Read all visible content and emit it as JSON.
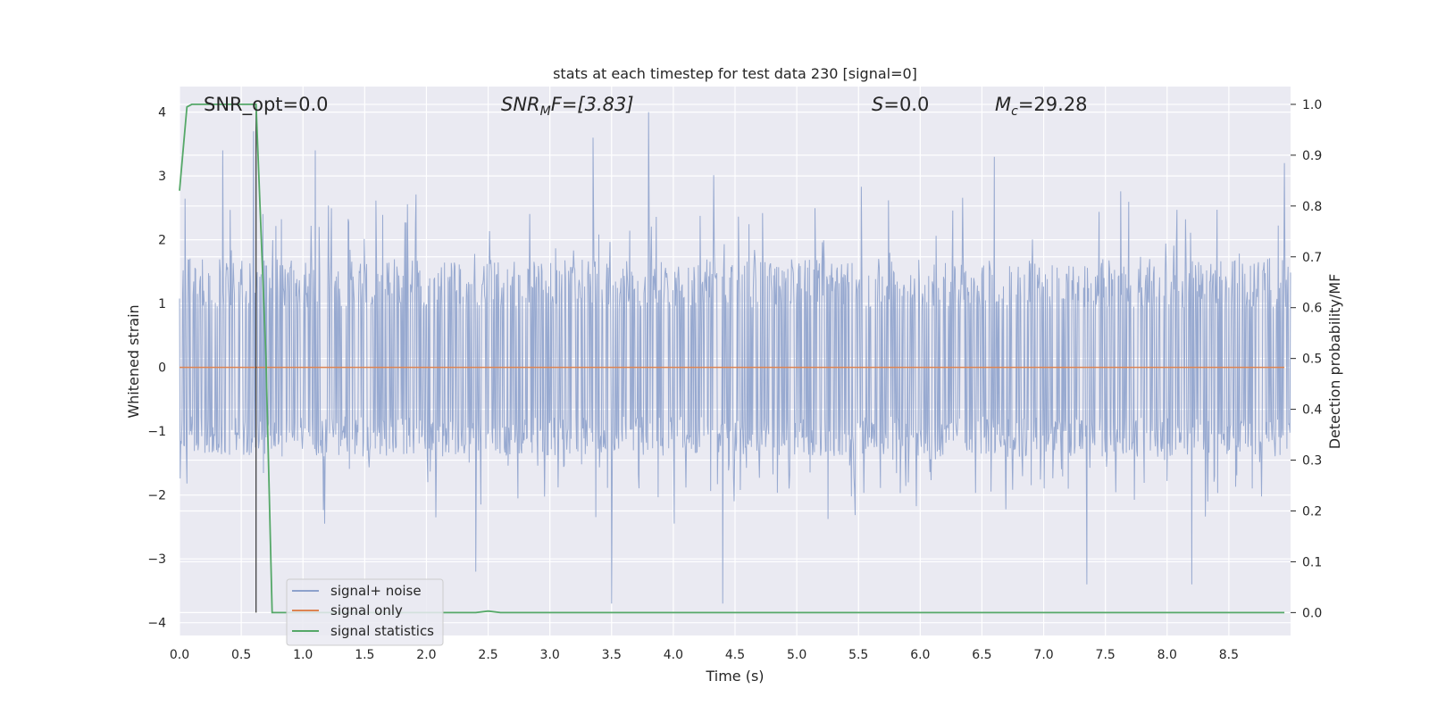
{
  "chart_data": {
    "type": "line",
    "title": "stats at each timestep for test data 230 [signal=0]",
    "xlabel": "Time (s)",
    "ylabel_left": "Whitened strain",
    "ylabel_right": "Detection probability/MF",
    "xlim": [
      0.0,
      9.0
    ],
    "ylim_left": [
      -4.2,
      4.4
    ],
    "ylim_right": [
      -0.045,
      1.035
    ],
    "x_ticks": [
      "0.0",
      "0.5",
      "1.0",
      "1.5",
      "2.0",
      "2.5",
      "3.0",
      "3.5",
      "4.0",
      "4.5",
      "5.0",
      "5.5",
      "6.0",
      "6.5",
      "7.0",
      "7.5",
      "8.0",
      "8.5"
    ],
    "y_left_ticks": [
      "4",
      "3",
      "2",
      "1",
      "0",
      "−1",
      "−2",
      "−3",
      "−4"
    ],
    "y_right_ticks": [
      "1.0",
      "0.9",
      "0.8",
      "0.7",
      "0.6",
      "0.5",
      "0.4",
      "0.3",
      "0.2",
      "0.1",
      "0.0"
    ],
    "grid": true,
    "legend_position": "lower-left",
    "annotations": {
      "snr_opt": "SNR_opt=0.0",
      "snr_mf_base": "SNR",
      "snr_mf_sub": "M",
      "snr_mf_rest": "F=[3.83]",
      "s_label_italic": "S",
      "s_label_rest": "=0.0",
      "mc_base": "M",
      "mc_sub": "c",
      "mc_rest": "=29.28"
    },
    "series": [
      {
        "name": "signal+ noise",
        "axis": "left",
        "color": "#8ea2cc",
        "description_values": {
          "duration_s": 9.0,
          "bulk_range": [
            -1.4,
            1.7
          ],
          "max": 4.0,
          "min": -3.7,
          "peaks": [
            [
              0.6,
              3.7
            ],
            [
              0.35,
              3.4
            ],
            [
              1.1,
              3.4
            ],
            [
              3.35,
              3.6
            ],
            [
              3.8,
              4.0
            ],
            [
              6.6,
              3.3
            ],
            [
              8.95,
              3.2
            ],
            [
              3.5,
              -3.7
            ],
            [
              4.4,
              -3.7
            ],
            [
              2.4,
              -3.2
            ],
            [
              7.35,
              -3.4
            ],
            [
              8.2,
              -3.4
            ]
          ]
        }
      },
      {
        "name": "signal only",
        "axis": "left",
        "color": "#dd8452",
        "values_constant": 0.0
      },
      {
        "name": "signal statistics",
        "axis": "right",
        "color": "#55a868",
        "x": [
          0.0,
          0.06,
          0.1,
          0.15,
          0.3,
          0.62,
          0.7,
          0.75,
          2.4,
          2.5,
          2.6,
          8.95
        ],
        "y": [
          0.83,
          0.995,
          1.0,
          1.0,
          1.0,
          1.0,
          0.5,
          0.0,
          0.0,
          0.003,
          0.0,
          0.0
        ]
      }
    ],
    "vertical_marker_x": 0.62
  },
  "legend": {
    "items": [
      {
        "label": "signal+ noise",
        "color": "#8ea2cc"
      },
      {
        "label": "signal only",
        "color": "#dd8452"
      },
      {
        "label": "signal statistics",
        "color": "#55a868"
      }
    ]
  },
  "colors": {
    "plot_background": "#eaeaf2",
    "grid": "#ffffff",
    "marker_line": "#333333"
  }
}
